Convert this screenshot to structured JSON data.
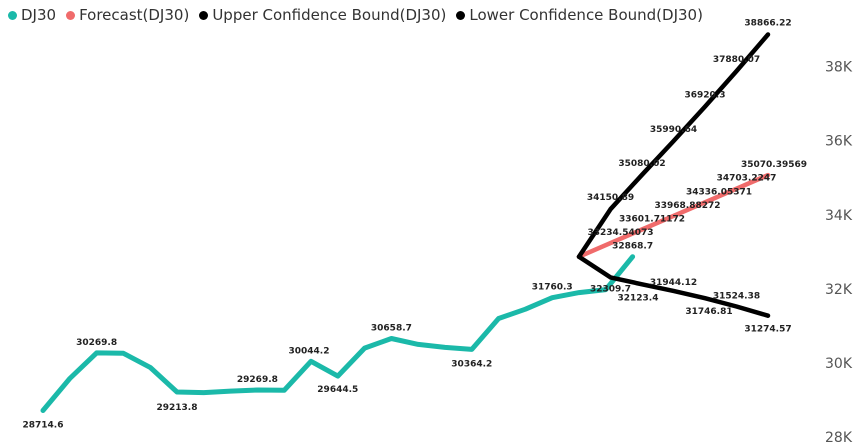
{
  "chart_data": {
    "type": "line",
    "legend_position": "top-left",
    "grid": false,
    "y_axis": {
      "position": "right",
      "ylim": [
        28000,
        38800
      ],
      "tick_labels": [
        "28K",
        "30K",
        "32K",
        "34K",
        "36K",
        "38K"
      ],
      "tick_values": [
        28000,
        30000,
        32000,
        34000,
        36000,
        38000
      ]
    },
    "series": [
      {
        "name": "DJ30",
        "color": "#1BB9A9",
        "values": [
          28714.6,
          29580,
          30269.8,
          30260,
          29880,
          29213.8,
          29200,
          29240,
          29269.8,
          29260,
          30044.2,
          29644.5,
          30400,
          30658.7,
          30500,
          30420,
          30364.2,
          31200,
          31450,
          31760.3,
          31900,
          31980,
          32868.7
        ],
        "point_labels": [
          "28714.6",
          "",
          "30269.8",
          "",
          "",
          "29213.8",
          "",
          "",
          "29269.8",
          "",
          "30044.2",
          "29644.5",
          "",
          "30658.7",
          "",
          "",
          "30364.2",
          "",
          "",
          "31760.3",
          "",
          "",
          "32868.7"
        ]
      },
      {
        "name": "Forecast(DJ30)",
        "color": "#F06B6B",
        "values": [
          32868.7,
          33234.54073,
          33601.71172,
          33968.88272,
          34336.05371,
          34703.2247,
          35070.39569
        ],
        "point_labels": [
          "32868.7",
          "33234.54073",
          "33601.71172",
          "33968.88272",
          "34336.05371",
          "34703.2247",
          "35070.39569"
        ]
      },
      {
        "name": "Upper Confidence Bound(DJ30)",
        "color": "#000000",
        "values": [
          32868.7,
          34150.89,
          35080.02,
          35990.64,
          36920.3,
          37880.07,
          38866.22
        ],
        "point_labels": [
          "32868.7",
          "34150.89",
          "35080.02",
          "35990.64",
          "36920.3",
          "37880.07",
          "38866.22"
        ]
      },
      {
        "name": "Lower Confidence Bound(DJ30)",
        "color": "#000000",
        "values": [
          32868.7,
          32309.7,
          32123.4,
          31944.12,
          31746.81,
          31524.38,
          31274.57
        ],
        "point_labels": [
          "32868.7",
          "32309.7",
          "32123.4",
          "31944.12",
          "31746.81",
          "31524.38",
          "31274.57"
        ]
      }
    ]
  }
}
